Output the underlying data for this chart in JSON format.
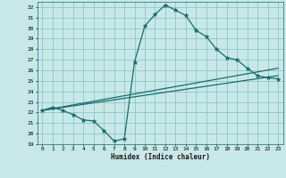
{
  "title": "",
  "xlabel": "Humidex (Indice chaleur)",
  "ylabel": "",
  "xlim": [
    -0.5,
    23.5
  ],
  "ylim": [
    19,
    32.5
  ],
  "yticks": [
    19,
    20,
    21,
    22,
    23,
    24,
    25,
    26,
    27,
    28,
    29,
    30,
    31,
    32
  ],
  "xticks": [
    0,
    1,
    2,
    3,
    4,
    5,
    6,
    7,
    8,
    9,
    10,
    11,
    12,
    13,
    14,
    15,
    16,
    17,
    18,
    19,
    20,
    21,
    22,
    23
  ],
  "bg_color": "#c8e8e8",
  "grid_color": "#80c0c0",
  "line_color": "#1a6b6b",
  "lines": [
    {
      "x": [
        0,
        1,
        2,
        3,
        4,
        5,
        6,
        7,
        8,
        9,
        10,
        11,
        12,
        13,
        14,
        15,
        16,
        17,
        18,
        19,
        20,
        21,
        22,
        23
      ],
      "y": [
        22.2,
        22.5,
        22.2,
        21.8,
        21.3,
        21.2,
        20.3,
        19.3,
        19.5,
        26.8,
        30.2,
        31.3,
        32.2,
        31.7,
        31.2,
        29.8,
        29.2,
        28.0,
        27.2,
        27.0,
        26.2,
        25.5,
        25.3,
        25.2
      ],
      "marker": "*",
      "markersize": 3.5
    },
    {
      "x": [
        0,
        23
      ],
      "y": [
        22.2,
        26.2
      ],
      "marker": null,
      "markersize": 0
    },
    {
      "x": [
        0,
        23
      ],
      "y": [
        22.2,
        25.5
      ],
      "marker": null,
      "markersize": 0
    }
  ]
}
